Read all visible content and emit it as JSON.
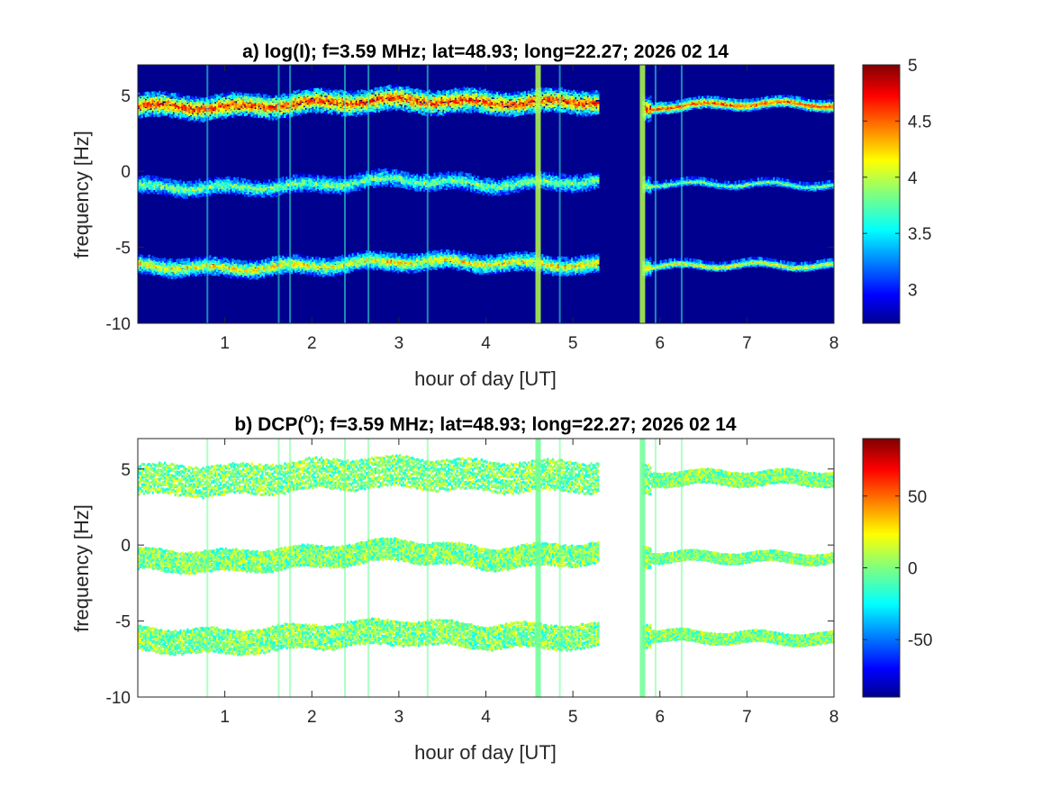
{
  "chart_data": [
    {
      "type": "heatmap",
      "title": "a) log(I); f=3.59 MHz;  lat=48.93; long=22.27; 2026 02 14",
      "xlabel": "hour of day [UT]",
      "ylabel": "frequency [Hz]",
      "xlim": [
        0,
        8
      ],
      "ylim": [
        -10,
        7
      ],
      "xticks": [
        1,
        2,
        3,
        4,
        5,
        6,
        7,
        8
      ],
      "yticks": [
        -10,
        -5,
        0,
        5
      ],
      "background": "#00008f",
      "colorbar": {
        "colormap": "jet",
        "clim": [
          2.7,
          5
        ],
        "ticks": [
          3,
          3.5,
          4,
          4.5,
          5
        ]
      },
      "gap_hours": [
        5.28,
        5.78
      ],
      "bands": [
        {
          "name": "",
          "center_hz": [
            [
              0,
              4.3
            ],
            [
              1,
              4.2
            ],
            [
              2,
              4.5
            ],
            [
              3,
              4.7
            ],
            [
              4,
              4.5
            ],
            [
              5.28,
              4.6
            ],
            [
              5.85,
              4.1
            ],
            [
              6,
              4.3
            ],
            [
              7,
              4.5
            ],
            [
              8,
              4.4
            ]
          ],
          "width_hz": 1.6,
          "level": 4.6
        },
        {
          "name": "",
          "center_hz": [
            [
              0,
              -1.0
            ],
            [
              1,
              -1.1
            ],
            [
              2,
              -0.9
            ],
            [
              3,
              -0.5
            ],
            [
              4,
              -0.9
            ],
            [
              5.28,
              -0.6
            ],
            [
              5.85,
              -0.8
            ],
            [
              6,
              -0.8
            ],
            [
              7,
              -0.8
            ],
            [
              8,
              -0.9
            ]
          ],
          "width_hz": 1.1,
          "level": 3.9
        },
        {
          "name": "",
          "center_hz": [
            [
              0,
              -6.2
            ],
            [
              1,
              -6.4
            ],
            [
              2,
              -6.2
            ],
            [
              3,
              -5.9
            ],
            [
              4,
              -6.0
            ],
            [
              5.28,
              -6.2
            ],
            [
              5.85,
              -6.2
            ],
            [
              6,
              -6.2
            ],
            [
              7,
              -6.1
            ],
            [
              8,
              -6.2
            ]
          ],
          "width_hz": 1.2,
          "level": 4.2
        }
      ],
      "vertical_lines_hours": [
        0.8,
        1.62,
        1.75,
        2.38,
        2.65,
        3.33,
        4.6,
        4.85,
        5.8,
        5.95,
        6.25
      ]
    },
    {
      "type": "heatmap",
      "title": "b) DCP(o); f=3.59 MHz;  lat=48.93; long=22.27; 2026 02 14",
      "title_parts": {
        "prefix": "b) DCP(",
        "superscript": "o",
        "suffix": "); f=3.59 MHz;  lat=48.93; long=22.27; 2026 02 14"
      },
      "xlabel": "hour of day [UT]",
      "ylabel": "frequency [Hz]",
      "xlim": [
        0,
        8
      ],
      "ylim": [
        -10,
        7
      ],
      "xticks": [
        1,
        2,
        3,
        4,
        5,
        6,
        7,
        8
      ],
      "yticks": [
        -10,
        -5,
        0,
        5
      ],
      "background": "#ffffff",
      "colorbar": {
        "colormap": "jet",
        "clim": [
          -90,
          90
        ],
        "ticks": [
          -50,
          0,
          50
        ]
      },
      "gap_hours": [
        5.28,
        5.78
      ],
      "bands": [
        {
          "name": "",
          "center_hz": [
            [
              0,
              4.3
            ],
            [
              1,
              4.2
            ],
            [
              2,
              4.6
            ],
            [
              3,
              4.8
            ],
            [
              4,
              4.5
            ],
            [
              5.28,
              4.5
            ],
            [
              5.85,
              4.3
            ],
            [
              6,
              4.4
            ],
            [
              7,
              4.4
            ],
            [
              8,
              4.4
            ]
          ],
          "width_hz": 2.0,
          "level": 5
        },
        {
          "name": "",
          "center_hz": [
            [
              0,
              -1.0
            ],
            [
              1,
              -1.1
            ],
            [
              2,
              -0.8
            ],
            [
              3,
              -0.3
            ],
            [
              4,
              -0.9
            ],
            [
              5.28,
              -0.5
            ],
            [
              5.85,
              -0.7
            ],
            [
              6,
              -0.8
            ],
            [
              7,
              -0.8
            ],
            [
              8,
              -0.9
            ]
          ],
          "width_hz": 1.4,
          "level": 5
        },
        {
          "name": "",
          "center_hz": [
            [
              0,
              -6.2
            ],
            [
              1,
              -6.4
            ],
            [
              2,
              -6.0
            ],
            [
              3,
              -5.7
            ],
            [
              4,
              -6.0
            ],
            [
              5.28,
              -6.0
            ],
            [
              5.85,
              -5.9
            ],
            [
              6,
              -6.0
            ],
            [
              7,
              -6.1
            ],
            [
              8,
              -6.2
            ]
          ],
          "width_hz": 1.6,
          "level": 5
        }
      ],
      "vertical_lines_hours": [
        0.8,
        1.62,
        1.75,
        2.38,
        2.65,
        3.33,
        4.6,
        4.85,
        5.8,
        5.95,
        6.25
      ]
    }
  ]
}
